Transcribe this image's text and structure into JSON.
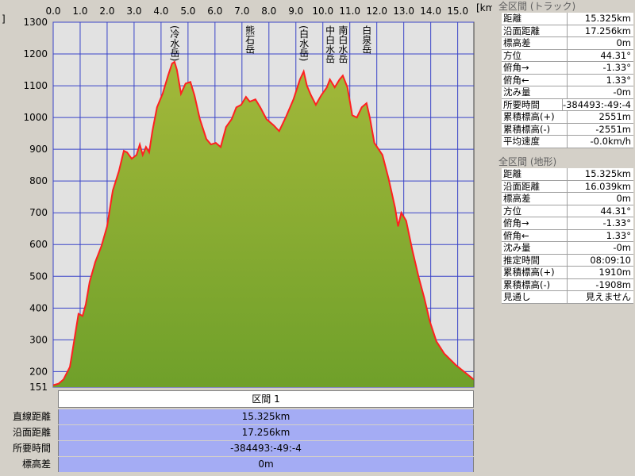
{
  "chart_data": {
    "type": "area-line",
    "y_unit_label": "]",
    "x_unit_label": "[km]",
    "x": [
      0,
      0.2,
      0.38,
      0.62,
      0.82,
      0.94,
      1.09,
      1.21,
      1.35,
      1.56,
      1.79,
      2.0,
      2.21,
      2.44,
      2.62,
      2.74,
      2.91,
      3.09,
      3.21,
      3.32,
      3.44,
      3.56,
      3.68,
      3.85,
      4.06,
      4.26,
      4.41,
      4.5,
      4.59,
      4.74,
      4.91,
      5.09,
      5.24,
      5.44,
      5.68,
      5.85,
      6.03,
      6.21,
      6.41,
      6.62,
      6.79,
      6.97,
      7.15,
      7.29,
      7.5,
      7.68,
      7.91,
      8.18,
      8.38,
      8.62,
      8.91,
      9.15,
      9.29,
      9.41,
      9.56,
      9.74,
      9.94,
      10.15,
      10.26,
      10.44,
      10.62,
      10.74,
      10.91,
      11.09,
      11.26,
      11.44,
      11.62,
      11.74,
      11.91,
      12.21,
      12.44,
      12.68,
      12.79,
      12.91,
      13.09,
      13.32,
      13.56,
      13.76,
      13.97,
      14.21,
      14.5,
      14.94,
      15.38,
      15.59
    ],
    "series": [
      {
        "color": "#ff2020",
        "fill": "#6fa02a",
        "values": [
          157,
          162,
          175,
          215,
          320,
          382,
          375,
          412,
          482,
          545,
          595,
          657,
          770,
          832,
          895,
          890,
          870,
          882,
          915,
          882,
          907,
          890,
          957,
          1032,
          1075,
          1132,
          1170,
          1175,
          1150,
          1075,
          1107,
          1112,
          1070,
          995,
          932,
          915,
          920,
          907,
          970,
          995,
          1032,
          1040,
          1065,
          1050,
          1057,
          1032,
          995,
          975,
          957,
          1000,
          1057,
          1120,
          1145,
          1100,
          1070,
          1040,
          1070,
          1095,
          1120,
          1095,
          1120,
          1132,
          1095,
          1007,
          1000,
          1032,
          1045,
          1000,
          920,
          882,
          807,
          715,
          657,
          700,
          675,
          582,
          495,
          432,
          357,
          295,
          257,
          220,
          190,
          175
        ]
      }
    ],
    "xlim": [
      0,
      15.6
    ],
    "ylim": [
      151,
      1300
    ],
    "xticks": [
      {
        "value": 0,
        "label": "0.0"
      },
      {
        "value": 1,
        "label": "1.0"
      },
      {
        "value": 2,
        "label": "2.0"
      },
      {
        "value": 3,
        "label": "3.0"
      },
      {
        "value": 4,
        "label": "4.0"
      },
      {
        "value": 5,
        "label": "5.0"
      },
      {
        "value": 6,
        "label": "6.0"
      },
      {
        "value": 7,
        "label": "7.0"
      },
      {
        "value": 8,
        "label": "8.0"
      },
      {
        "value": 9,
        "label": "9.0"
      },
      {
        "value": 10,
        "label": "10.0"
      },
      {
        "value": 11,
        "label": "11.0"
      },
      {
        "value": 12,
        "label": "12.0"
      },
      {
        "value": 13,
        "label": "13.0"
      },
      {
        "value": 14,
        "label": "14.0"
      },
      {
        "value": 15,
        "label": "15.0"
      }
    ],
    "yticks": [
      151,
      200,
      300,
      400,
      500,
      600,
      700,
      800,
      900,
      1000,
      1100,
      1200,
      1300
    ],
    "grid": true,
    "grid_color": "#3a44c8",
    "annotations": [
      {
        "text": "(冷水岳)",
        "x": 4.5
      },
      {
        "text": "熊石岳",
        "x": 7.29
      },
      {
        "text": "(白水岳)",
        "x": 9.29
      },
      {
        "text": "中白水岳",
        "x": 10.26
      },
      {
        "text": "南白水岳",
        "x": 10.74
      },
      {
        "text": "白泉岳",
        "x": 11.62
      }
    ]
  },
  "section_table": {
    "title": "区間 1",
    "rows": [
      [
        "直線距離",
        "15.325km"
      ],
      [
        "沿面距離",
        "17.256km"
      ],
      [
        "所要時間",
        "-384493:-49:-4"
      ],
      [
        "標高差",
        "0m"
      ]
    ]
  },
  "side_panels": [
    {
      "title": "全区間 (トラック)",
      "rows": [
        [
          "距離",
          "15.325km"
        ],
        [
          "沿面距離",
          "17.256km"
        ],
        [
          "標高差",
          "0m"
        ],
        [
          "方位",
          "44.31°"
        ],
        [
          "俯角→",
          "-1.33°"
        ],
        [
          "俯角←",
          "1.33°"
        ],
        [
          "沈み量",
          "-0m"
        ],
        [
          "所要時間",
          "-384493:-49:-4"
        ],
        [
          "累積標高(+)",
          "2551m"
        ],
        [
          "累積標高(-)",
          "-2551m"
        ],
        [
          "平均速度",
          "-0.0km/h"
        ]
      ]
    },
    {
      "title": "全区間 (地形)",
      "rows": [
        [
          "距離",
          "15.325km"
        ],
        [
          "沿面距離",
          "16.039km"
        ],
        [
          "標高差",
          "0m"
        ],
        [
          "方位",
          "44.31°"
        ],
        [
          "俯角→",
          "-1.33°"
        ],
        [
          "俯角←",
          "1.33°"
        ],
        [
          "沈み量",
          "-0m"
        ],
        [
          "推定時間",
          "08:09:10"
        ],
        [
          "累積標高(+)",
          "1910m"
        ],
        [
          "累積標高(-)",
          "-1908m"
        ],
        [
          "見通し",
          "見えません"
        ]
      ]
    }
  ]
}
